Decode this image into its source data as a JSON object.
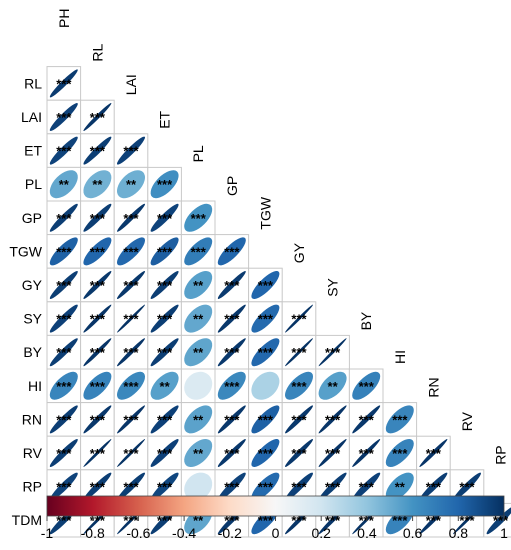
{
  "chart_data": {
    "type": "heatmap",
    "variables": [
      "PH",
      "RL",
      "LAI",
      "ET",
      "PL",
      "GP",
      "TGW",
      "GY",
      "SY",
      "BY",
      "HI",
      "RN",
      "RV",
      "RP",
      "TDM"
    ],
    "color_scale": {
      "range": [
        -1,
        1
      ],
      "ticks": [
        "-1",
        "-0.8",
        "-0.6",
        "-0.4",
        "-0.2",
        "0",
        "0.2",
        "0.4",
        "0.6",
        "0.8",
        "1"
      ],
      "stops": [
        "#67001f",
        "#b2182b",
        "#d6604d",
        "#f4a582",
        "#fddbc7",
        "#f7f7f7",
        "#d1e5f0",
        "#92c5de",
        "#4393c3",
        "#2166ac",
        "#053061"
      ]
    },
    "cells": [
      {
        "row": "RL",
        "col": "PH",
        "r": 0.96,
        "sig": "***"
      },
      {
        "row": "LAI",
        "col": "PH",
        "r": 0.94,
        "sig": "***"
      },
      {
        "row": "LAI",
        "col": "RL",
        "r": 0.98,
        "sig": "***"
      },
      {
        "row": "ET",
        "col": "PH",
        "r": 0.93,
        "sig": "***"
      },
      {
        "row": "ET",
        "col": "RL",
        "r": 0.95,
        "sig": "***"
      },
      {
        "row": "ET",
        "col": "LAI",
        "r": 0.94,
        "sig": "***"
      },
      {
        "row": "PL",
        "col": "PH",
        "r": 0.52,
        "sig": "**"
      },
      {
        "row": "PL",
        "col": "RL",
        "r": 0.48,
        "sig": "**"
      },
      {
        "row": "PL",
        "col": "LAI",
        "r": 0.49,
        "sig": "**"
      },
      {
        "row": "PL",
        "col": "ET",
        "r": 0.62,
        "sig": "***"
      },
      {
        "row": "GP",
        "col": "PH",
        "r": 0.95,
        "sig": "***"
      },
      {
        "row": "GP",
        "col": "RL",
        "r": 0.95,
        "sig": "***"
      },
      {
        "row": "GP",
        "col": "LAI",
        "r": 0.97,
        "sig": "***"
      },
      {
        "row": "GP",
        "col": "ET",
        "r": 0.93,
        "sig": "***"
      },
      {
        "row": "GP",
        "col": "PL",
        "r": 0.6,
        "sig": "***"
      },
      {
        "row": "TGW",
        "col": "PH",
        "r": 0.82,
        "sig": "***"
      },
      {
        "row": "TGW",
        "col": "RL",
        "r": 0.8,
        "sig": "***"
      },
      {
        "row": "TGW",
        "col": "LAI",
        "r": 0.79,
        "sig": "***"
      },
      {
        "row": "TGW",
        "col": "ET",
        "r": 0.83,
        "sig": "***"
      },
      {
        "row": "TGW",
        "col": "PL",
        "r": 0.7,
        "sig": "***"
      },
      {
        "row": "TGW",
        "col": "GP",
        "r": 0.8,
        "sig": "***"
      },
      {
        "row": "GY",
        "col": "PH",
        "r": 0.95,
        "sig": "***"
      },
      {
        "row": "GY",
        "col": "RL",
        "r": 0.97,
        "sig": "***"
      },
      {
        "row": "GY",
        "col": "LAI",
        "r": 0.97,
        "sig": "***"
      },
      {
        "row": "GY",
        "col": "ET",
        "r": 0.95,
        "sig": "***"
      },
      {
        "row": "GY",
        "col": "PL",
        "r": 0.55,
        "sig": "**"
      },
      {
        "row": "GY",
        "col": "GP",
        "r": 0.96,
        "sig": "***"
      },
      {
        "row": "GY",
        "col": "TGW",
        "r": 0.8,
        "sig": "***"
      },
      {
        "row": "SY",
        "col": "PH",
        "r": 0.94,
        "sig": "***"
      },
      {
        "row": "SY",
        "col": "RL",
        "r": 0.98,
        "sig": "***"
      },
      {
        "row": "SY",
        "col": "LAI",
        "r": 0.99,
        "sig": "***"
      },
      {
        "row": "SY",
        "col": "ET",
        "r": 0.95,
        "sig": "***"
      },
      {
        "row": "SY",
        "col": "PL",
        "r": 0.52,
        "sig": "**"
      },
      {
        "row": "SY",
        "col": "GP",
        "r": 0.97,
        "sig": "***"
      },
      {
        "row": "SY",
        "col": "TGW",
        "r": 0.78,
        "sig": "***"
      },
      {
        "row": "SY",
        "col": "GY",
        "r": 0.99,
        "sig": "***"
      },
      {
        "row": "BY",
        "col": "PH",
        "r": 0.95,
        "sig": "***"
      },
      {
        "row": "BY",
        "col": "RL",
        "r": 0.98,
        "sig": "***"
      },
      {
        "row": "BY",
        "col": "LAI",
        "r": 0.98,
        "sig": "***"
      },
      {
        "row": "BY",
        "col": "ET",
        "r": 0.95,
        "sig": "***"
      },
      {
        "row": "BY",
        "col": "PL",
        "r": 0.53,
        "sig": "**"
      },
      {
        "row": "BY",
        "col": "GP",
        "r": 0.97,
        "sig": "***"
      },
      {
        "row": "BY",
        "col": "TGW",
        "r": 0.79,
        "sig": "***"
      },
      {
        "row": "BY",
        "col": "GY",
        "r": 0.99,
        "sig": "***"
      },
      {
        "row": "BY",
        "col": "SY",
        "r": 0.99,
        "sig": "***"
      },
      {
        "row": "HI",
        "col": "PH",
        "r": 0.66,
        "sig": "***"
      },
      {
        "row": "HI",
        "col": "RL",
        "r": 0.67,
        "sig": "***"
      },
      {
        "row": "HI",
        "col": "LAI",
        "r": 0.65,
        "sig": "***"
      },
      {
        "row": "HI",
        "col": "ET",
        "r": 0.55,
        "sig": "**"
      },
      {
        "row": "HI",
        "col": "PL",
        "r": 0.15,
        "sig": ""
      },
      {
        "row": "HI",
        "col": "GP",
        "r": 0.65,
        "sig": "***"
      },
      {
        "row": "HI",
        "col": "TGW",
        "r": 0.32,
        "sig": ""
      },
      {
        "row": "HI",
        "col": "GY",
        "r": 0.66,
        "sig": "***"
      },
      {
        "row": "HI",
        "col": "SY",
        "r": 0.55,
        "sig": "**"
      },
      {
        "row": "HI",
        "col": "BY",
        "r": 0.68,
        "sig": "***"
      },
      {
        "row": "RN",
        "col": "PH",
        "r": 0.95,
        "sig": "***"
      },
      {
        "row": "RN",
        "col": "RL",
        "r": 0.97,
        "sig": "***"
      },
      {
        "row": "RN",
        "col": "LAI",
        "r": 0.98,
        "sig": "***"
      },
      {
        "row": "RN",
        "col": "ET",
        "r": 0.94,
        "sig": "***"
      },
      {
        "row": "RN",
        "col": "PL",
        "r": 0.54,
        "sig": "**"
      },
      {
        "row": "RN",
        "col": "GP",
        "r": 0.97,
        "sig": "***"
      },
      {
        "row": "RN",
        "col": "TGW",
        "r": 0.82,
        "sig": "***"
      },
      {
        "row": "RN",
        "col": "GY",
        "r": 0.97,
        "sig": "***"
      },
      {
        "row": "RN",
        "col": "SY",
        "r": 0.98,
        "sig": "***"
      },
      {
        "row": "RN",
        "col": "BY",
        "r": 0.97,
        "sig": "***"
      },
      {
        "row": "RN",
        "col": "HI",
        "r": 0.66,
        "sig": "***"
      },
      {
        "row": "RV",
        "col": "PH",
        "r": 0.95,
        "sig": "***"
      },
      {
        "row": "RV",
        "col": "RL",
        "r": 0.99,
        "sig": "***"
      },
      {
        "row": "RV",
        "col": "LAI",
        "r": 0.99,
        "sig": "***"
      },
      {
        "row": "RV",
        "col": "ET",
        "r": 0.94,
        "sig": "***"
      },
      {
        "row": "RV",
        "col": "PL",
        "r": 0.52,
        "sig": "**"
      },
      {
        "row": "RV",
        "col": "GP",
        "r": 0.97,
        "sig": "***"
      },
      {
        "row": "RV",
        "col": "TGW",
        "r": 0.8,
        "sig": "***"
      },
      {
        "row": "RV",
        "col": "GY",
        "r": 0.97,
        "sig": "***"
      },
      {
        "row": "RV",
        "col": "SY",
        "r": 0.98,
        "sig": "***"
      },
      {
        "row": "RV",
        "col": "BY",
        "r": 0.98,
        "sig": "***"
      },
      {
        "row": "RV",
        "col": "HI",
        "r": 0.67,
        "sig": "***"
      },
      {
        "row": "RV",
        "col": "RN",
        "r": 0.98,
        "sig": "***"
      },
      {
        "row": "RP",
        "col": "PH",
        "r": 0.93,
        "sig": "***"
      },
      {
        "row": "RP",
        "col": "RL",
        "r": 0.95,
        "sig": "***"
      },
      {
        "row": "RP",
        "col": "LAI",
        "r": 0.95,
        "sig": "***"
      },
      {
        "row": "RP",
        "col": "ET",
        "r": 0.92,
        "sig": "***"
      },
      {
        "row": "RP",
        "col": "PL",
        "r": 0.2,
        "sig": ""
      },
      {
        "row": "RP",
        "col": "GP",
        "r": 0.93,
        "sig": "***"
      },
      {
        "row": "RP",
        "col": "TGW",
        "r": 0.78,
        "sig": "***"
      },
      {
        "row": "RP",
        "col": "GY",
        "r": 0.94,
        "sig": "***"
      },
      {
        "row": "RP",
        "col": "SY",
        "r": 0.95,
        "sig": "***"
      },
      {
        "row": "RP",
        "col": "BY",
        "r": 0.94,
        "sig": "***"
      },
      {
        "row": "RP",
        "col": "HI",
        "r": 0.6,
        "sig": "**"
      },
      {
        "row": "RP",
        "col": "RN",
        "r": 0.95,
        "sig": "***"
      },
      {
        "row": "RP",
        "col": "RV",
        "r": 0.95,
        "sig": "***"
      },
      {
        "row": "TDM",
        "col": "PH",
        "r": 0.95,
        "sig": "***"
      },
      {
        "row": "TDM",
        "col": "RL",
        "r": 0.99,
        "sig": "***"
      },
      {
        "row": "TDM",
        "col": "LAI",
        "r": 0.99,
        "sig": "***"
      },
      {
        "row": "TDM",
        "col": "ET",
        "r": 0.95,
        "sig": "***"
      },
      {
        "row": "TDM",
        "col": "PL",
        "r": 0.53,
        "sig": "**"
      },
      {
        "row": "TDM",
        "col": "GP",
        "r": 0.97,
        "sig": "***"
      },
      {
        "row": "TDM",
        "col": "TGW",
        "r": 0.8,
        "sig": "***"
      },
      {
        "row": "TDM",
        "col": "GY",
        "r": 0.98,
        "sig": "***"
      },
      {
        "row": "TDM",
        "col": "SY",
        "r": 0.98,
        "sig": "***"
      },
      {
        "row": "TDM",
        "col": "BY",
        "r": 0.99,
        "sig": "***"
      },
      {
        "row": "TDM",
        "col": "HI",
        "r": 0.67,
        "sig": "***"
      },
      {
        "row": "TDM",
        "col": "RN",
        "r": 0.98,
        "sig": "***"
      },
      {
        "row": "TDM",
        "col": "RV",
        "r": 0.99,
        "sig": "***"
      },
      {
        "row": "TDM",
        "col": "RP",
        "r": 0.95,
        "sig": "***"
      }
    ]
  }
}
